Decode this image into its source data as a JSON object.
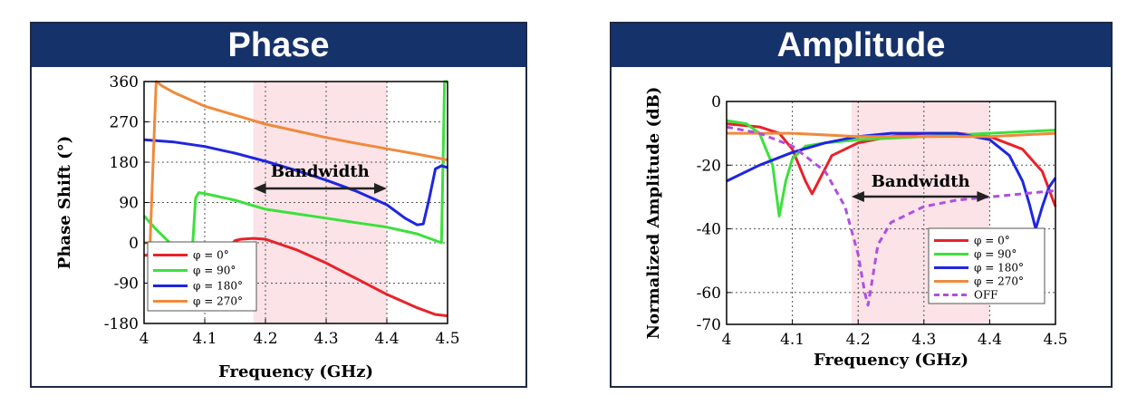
{
  "panels": {
    "phase": {
      "title": "Phase"
    },
    "amplitude": {
      "title": "Amplitude"
    }
  },
  "chart_data": [
    {
      "type": "line",
      "title": "Phase",
      "xlabel": "Frequency (GHz)",
      "ylabel": "Phase Shift (°)",
      "xlim": [
        4,
        4.5
      ],
      "ylim": [
        -180,
        360
      ],
      "xticks": [
        "4",
        "4.1",
        "4.2",
        "4.3",
        "4.4",
        "4.5"
      ],
      "yticks": [
        "360",
        "270",
        "180",
        "90",
        "0",
        "-90",
        "-180"
      ],
      "grid": true,
      "legend_position": "bottom-left",
      "band": {
        "x": [
          4.18,
          4.4
        ],
        "label": "Bandwidth"
      },
      "series": [
        {
          "name": "φ = 0°",
          "color": "#e8222a",
          "x": [
            4.0,
            4.005,
            4.02,
            4.05,
            4.08,
            4.1,
            4.12,
            4.14,
            4.15,
            4.16,
            4.18,
            4.2,
            4.25,
            4.3,
            4.35,
            4.4,
            4.45,
            4.48,
            4.5
          ],
          "y": [
            -28,
            -28,
            -5,
            0,
            0,
            -15,
            -28,
            -10,
            5,
            8,
            10,
            8,
            -15,
            -45,
            -80,
            -115,
            -145,
            -160,
            -163
          ]
        },
        {
          "name": "φ = 90°",
          "color": "#3de03d",
          "x": [
            4.0,
            4.02,
            4.05,
            4.07,
            4.08,
            4.085,
            4.09,
            4.1,
            4.15,
            4.2,
            4.25,
            4.3,
            4.35,
            4.4,
            4.45,
            4.48,
            4.49,
            4.495,
            4.5
          ],
          "y": [
            60,
            30,
            -10,
            -20,
            -5,
            100,
            112,
            110,
            95,
            75,
            65,
            55,
            45,
            35,
            20,
            5,
            0,
            360,
            360
          ]
        },
        {
          "name": "φ = 180°",
          "color": "#1f26e0",
          "x": [
            4.0,
            4.05,
            4.1,
            4.15,
            4.2,
            4.25,
            4.3,
            4.35,
            4.4,
            4.43,
            4.45,
            4.46,
            4.47,
            4.48,
            4.49,
            4.5
          ],
          "y": [
            230,
            225,
            215,
            200,
            182,
            162,
            140,
            115,
            85,
            55,
            40,
            42,
            100,
            165,
            172,
            168
          ]
        },
        {
          "name": "φ = 270°",
          "color": "#f08a3c",
          "x": [
            4.0,
            4.01,
            4.015,
            4.02,
            4.03,
            4.05,
            4.1,
            4.15,
            4.2,
            4.25,
            4.3,
            4.35,
            4.4,
            4.45,
            4.5
          ],
          "y": [
            0,
            0,
            180,
            360,
            350,
            335,
            305,
            285,
            265,
            250,
            235,
            222,
            210,
            198,
            185
          ]
        }
      ]
    },
    {
      "type": "line",
      "title": "Amplitude",
      "xlabel": "Frequency (GHz)",
      "ylabel": "Normalized Amplitude (dB)",
      "xlim": [
        4,
        4.5
      ],
      "ylim": [
        -70,
        0
      ],
      "xticks": [
        "4",
        "4.1",
        "4.2",
        "4.3",
        "4.4",
        "4.5"
      ],
      "yticks": [
        "0",
        "-20",
        "-40",
        "-60",
        "-70"
      ],
      "grid": true,
      "legend_position": "bottom-right",
      "band": {
        "x": [
          4.19,
          4.4
        ],
        "label": "Bandwidth"
      },
      "series": [
        {
          "name": "φ = 0°",
          "color": "#e8222a",
          "x": [
            4.0,
            4.05,
            4.08,
            4.1,
            4.12,
            4.13,
            4.14,
            4.16,
            4.2,
            4.25,
            4.3,
            4.35,
            4.4,
            4.45,
            4.48,
            4.5
          ],
          "y": [
            -7,
            -8,
            -10,
            -15,
            -25,
            -29,
            -25,
            -17,
            -13,
            -11,
            -10,
            -10,
            -11,
            -15,
            -22,
            -33
          ]
        },
        {
          "name": "φ = 90°",
          "color": "#3de03d",
          "x": [
            4.0,
            4.03,
            4.05,
            4.07,
            4.08,
            4.09,
            4.1,
            4.12,
            4.15,
            4.2,
            4.3,
            4.4,
            4.5
          ],
          "y": [
            -6,
            -7,
            -10,
            -20,
            -36,
            -25,
            -18,
            -14,
            -13,
            -12,
            -11,
            -10,
            -9
          ]
        },
        {
          "name": "φ = 180°",
          "color": "#1f26e0",
          "x": [
            4.0,
            4.05,
            4.1,
            4.15,
            4.2,
            4.25,
            4.3,
            4.35,
            4.4,
            4.43,
            4.45,
            4.46,
            4.47,
            4.48,
            4.49,
            4.5
          ],
          "y": [
            -25,
            -20,
            -16,
            -13,
            -11,
            -10,
            -10,
            -10,
            -12,
            -17,
            -25,
            -32,
            -40,
            -33,
            -27,
            -24
          ]
        },
        {
          "name": "φ = 270°",
          "color": "#f08a3c",
          "x": [
            4.0,
            4.1,
            4.2,
            4.3,
            4.4,
            4.5
          ],
          "y": [
            -10,
            -10,
            -11,
            -11,
            -11,
            -10
          ]
        },
        {
          "name": "OFF",
          "color": "#b04fe0",
          "dashed": true,
          "x": [
            4.0,
            4.05,
            4.1,
            4.15,
            4.18,
            4.2,
            4.21,
            4.215,
            4.22,
            4.23,
            4.25,
            4.3,
            4.35,
            4.4,
            4.45,
            4.5
          ],
          "y": [
            -8,
            -10,
            -14,
            -22,
            -33,
            -48,
            -60,
            -64,
            -58,
            -45,
            -38,
            -33,
            -31,
            -30,
            -29,
            -28
          ]
        }
      ]
    }
  ]
}
